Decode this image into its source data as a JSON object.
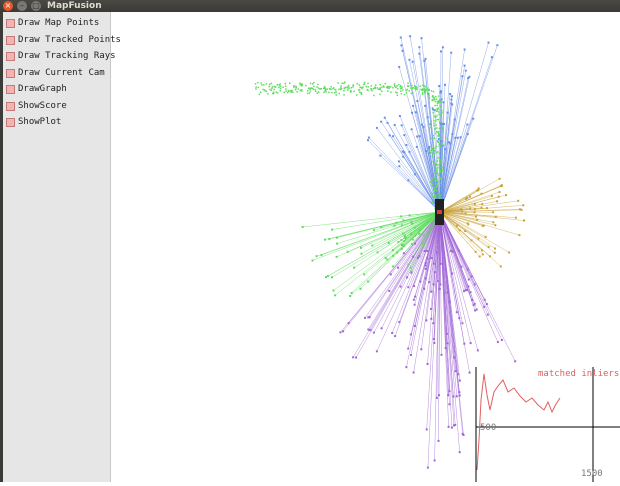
{
  "window": {
    "title": "MapFusion",
    "close_glyph": "×",
    "minimize_glyph": "–",
    "maximize_glyph": "□"
  },
  "panel": {
    "items": [
      {
        "label": "Draw Map Points"
      },
      {
        "label": "Draw Tracked Points"
      },
      {
        "label": "Draw Tracking Rays"
      },
      {
        "label": "Draw Current Cam"
      },
      {
        "label": "DrawGraph"
      },
      {
        "label": "ShowScore"
      },
      {
        "label": "ShowPlot"
      }
    ]
  },
  "plot": {
    "series_label": "matched inliers",
    "y_tick": "500",
    "x_tick": "1500",
    "line_color": "#e06060"
  },
  "colors": {
    "rays_blue": "#6a8ee6",
    "rays_green": "#5fdc5f",
    "rays_purple": "#a066d6",
    "rays_orange": "#c9a23a"
  }
}
